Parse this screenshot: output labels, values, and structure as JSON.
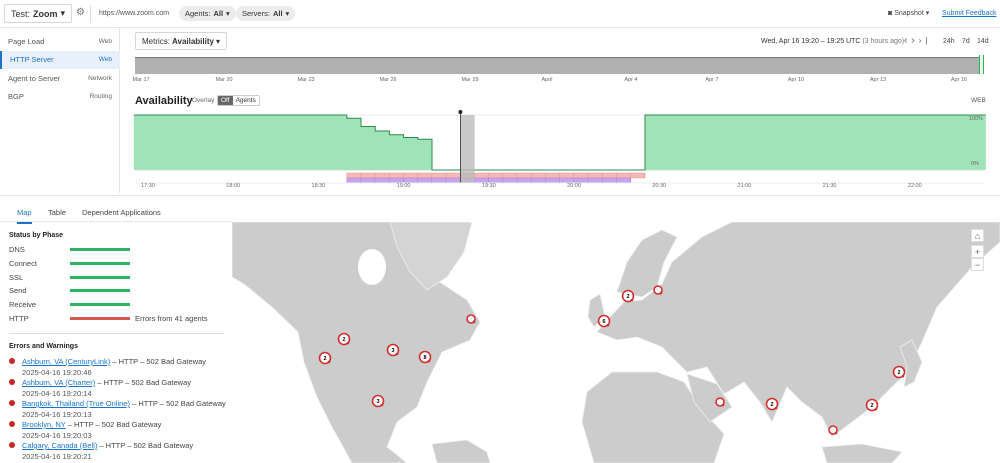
{
  "topbar": {
    "test_label": "Test:",
    "test_value": "Zoom",
    "url": "https://www.zoom.com",
    "agents_label": "Agents:",
    "agents_value": "All",
    "servers_label": "Servers:",
    "servers_value": "All",
    "snapshot": "Snapshot",
    "feedback": "Submit Feedback"
  },
  "nav": [
    {
      "label": "Page Load",
      "type": "Web"
    },
    {
      "label": "HTTP Server",
      "type": "Web",
      "active": true
    },
    {
      "label": "Agent to Server",
      "type": "Network"
    },
    {
      "label": "BGP",
      "type": "Routing"
    }
  ],
  "metrics": {
    "label": "Metrics:",
    "value": "Availability"
  },
  "time": {
    "range": "Wed, Apr 16 19:20 – 19:25 UTC",
    "ago": "(3 hours ago)",
    "spans": [
      "24h",
      "7d",
      "14d"
    ]
  },
  "overview_ticks": [
    "Mar 17",
    "Mar 20",
    "Mar 23",
    "Mar 26",
    "Mar 29",
    "April",
    "Apr 4",
    "Apr 7",
    "Apr 10",
    "Apr 13",
    "Apr 16"
  ],
  "chart_data": {
    "type": "area",
    "title": "Availability",
    "overlay_label": "Overlay",
    "overlay_options": [
      "Off",
      "Agents"
    ],
    "overlay_selected": "Off",
    "badge": "WEB",
    "y_ticks": [
      "100%",
      "0%"
    ],
    "ylim": [
      0,
      100
    ],
    "x_ticks": [
      "17:30",
      "18:00",
      "18:30",
      "19:00",
      "19:30",
      "20:00",
      "20:30",
      "21:00",
      "21:30",
      "22:00"
    ],
    "points": [
      [
        "17:25",
        100
      ],
      [
        "18:40",
        100
      ],
      [
        "18:40",
        94
      ],
      [
        "18:45",
        94
      ],
      [
        "18:45",
        79
      ],
      [
        "18:50",
        79
      ],
      [
        "18:50",
        71
      ],
      [
        "18:55",
        71
      ],
      [
        "18:55",
        64
      ],
      [
        "19:00",
        64
      ],
      [
        "19:00",
        59
      ],
      [
        "19:05",
        59
      ],
      [
        "19:05",
        56
      ],
      [
        "19:10",
        56
      ],
      [
        "19:10",
        0
      ],
      [
        "20:25",
        0
      ],
      [
        "20:25",
        100
      ],
      [
        "22:25",
        100
      ]
    ],
    "selected": [
      "19:20",
      "19:25"
    ],
    "error_bands": [
      {
        "from": "18:40",
        "to": "20:25",
        "color": "#f4b9b5"
      },
      {
        "from": "18:40",
        "to": "20:20",
        "color": "#c8a4ee"
      }
    ],
    "fill": "#a0e3b8",
    "stroke": "#2e8b4e"
  },
  "tabs": [
    "Map",
    "Table",
    "Dependent Applications"
  ],
  "status": {
    "title": "Status by Phase",
    "phases": [
      {
        "name": "DNS",
        "ok": true
      },
      {
        "name": "Connect",
        "ok": true
      },
      {
        "name": "SSL",
        "ok": true
      },
      {
        "name": "Send",
        "ok": true
      },
      {
        "name": "Receive",
        "ok": true
      },
      {
        "name": "HTTP",
        "ok": false,
        "note": "Errors from 41 agents"
      }
    ]
  },
  "errors": {
    "title": "Errors and Warnings",
    "items": [
      {
        "agent": "Ashburn, VA (CenturyLink)",
        "msg": "– HTTP – 502 Bad Gateway",
        "ts": "2025-04-16 19:20:46"
      },
      {
        "agent": "Ashburn, VA (Charter)",
        "msg": "– HTTP – 502 Bad Gateway",
        "ts": "2025-04-16 19:20:14"
      },
      {
        "agent": "Bangkok, Thailand (True Online)",
        "msg": "– HTTP – 502 Bad Gateway",
        "ts": "2025-04-16 19:20:13"
      },
      {
        "agent": "Brooklyn, NY",
        "msg": "– HTTP – 502 Bad Gateway",
        "ts": "2025-04-16 19:20:03"
      },
      {
        "agent": "Calgary, Canada (Bell)",
        "msg": "– HTTP – 502 Bad Gateway",
        "ts": "2025-04-16 19:20:21"
      }
    ]
  },
  "map_markers": [
    "2",
    "2",
    "3",
    "8",
    "3",
    "",
    "2",
    "",
    "6",
    "",
    "2",
    "2",
    "2",
    ""
  ],
  "colors": {
    "accent": "#1a73c8",
    "ok": "#2db35d",
    "error": "#d9534f",
    "marker": "#d32f2f",
    "land": "#cccccc"
  }
}
